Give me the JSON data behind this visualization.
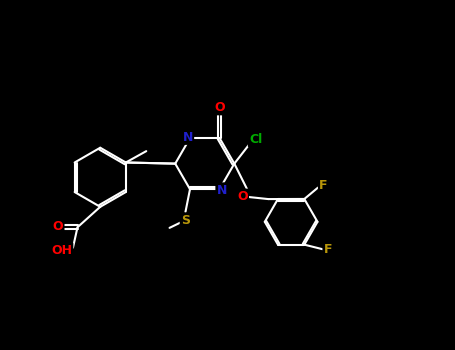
{
  "background_color": "#000000",
  "figure_width": 4.55,
  "figure_height": 3.5,
  "dpi": 100,
  "bond_color": "#ffffff",
  "bond_lw": 1.5,
  "atom_colors": {
    "O": "#ff0000",
    "N": "#2020cc",
    "S": "#b8960a",
    "Cl": "#00aa00",
    "F": "#b8960a",
    "C": "#ffffff",
    "H": "#ffffff"
  },
  "font_size": 9,
  "font_size_small": 7.5
}
